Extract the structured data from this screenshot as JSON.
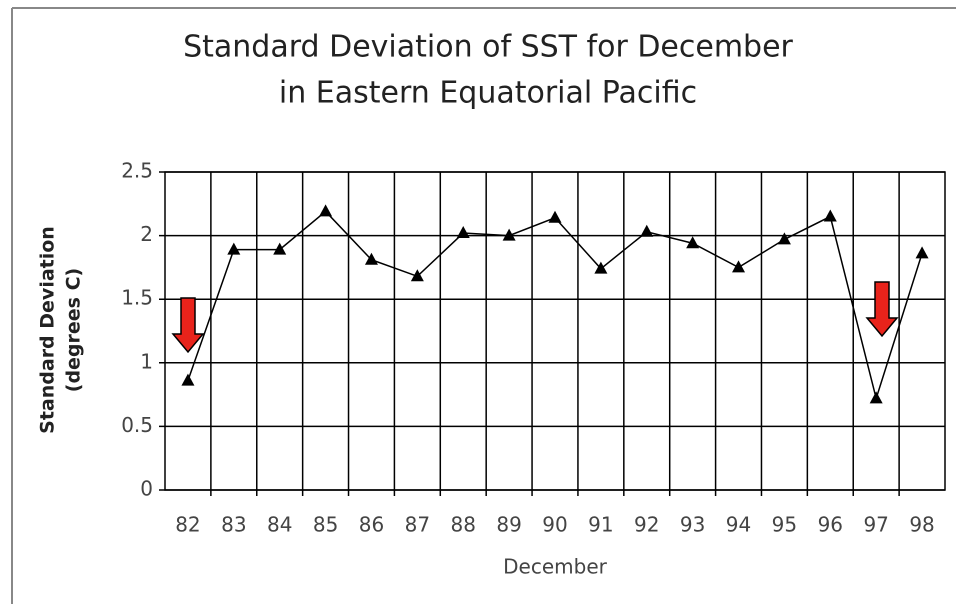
{
  "chart_data": {
    "type": "line",
    "title": [
      "Standard Deviation of SST for December",
      "in Eastern Equatorial Pacific"
    ],
    "xlabel": "December",
    "ylabel": [
      "Standard Deviation",
      "(degrees C)"
    ],
    "categories": [
      "82",
      "83",
      "84",
      "85",
      "86",
      "87",
      "88",
      "89",
      "90",
      "91",
      "92",
      "93",
      "94",
      "95",
      "96",
      "97",
      "98"
    ],
    "values": [
      0.86,
      1.89,
      1.89,
      2.19,
      1.81,
      1.68,
      2.02,
      2.0,
      2.14,
      1.74,
      2.03,
      1.94,
      1.75,
      1.97,
      2.15,
      0.72,
      1.86
    ],
    "color": "#000000",
    "ylim": [
      0,
      2.5
    ],
    "yticks": [
      0,
      0.5,
      1,
      1.5,
      2,
      2.5
    ],
    "grid": true
  }
}
